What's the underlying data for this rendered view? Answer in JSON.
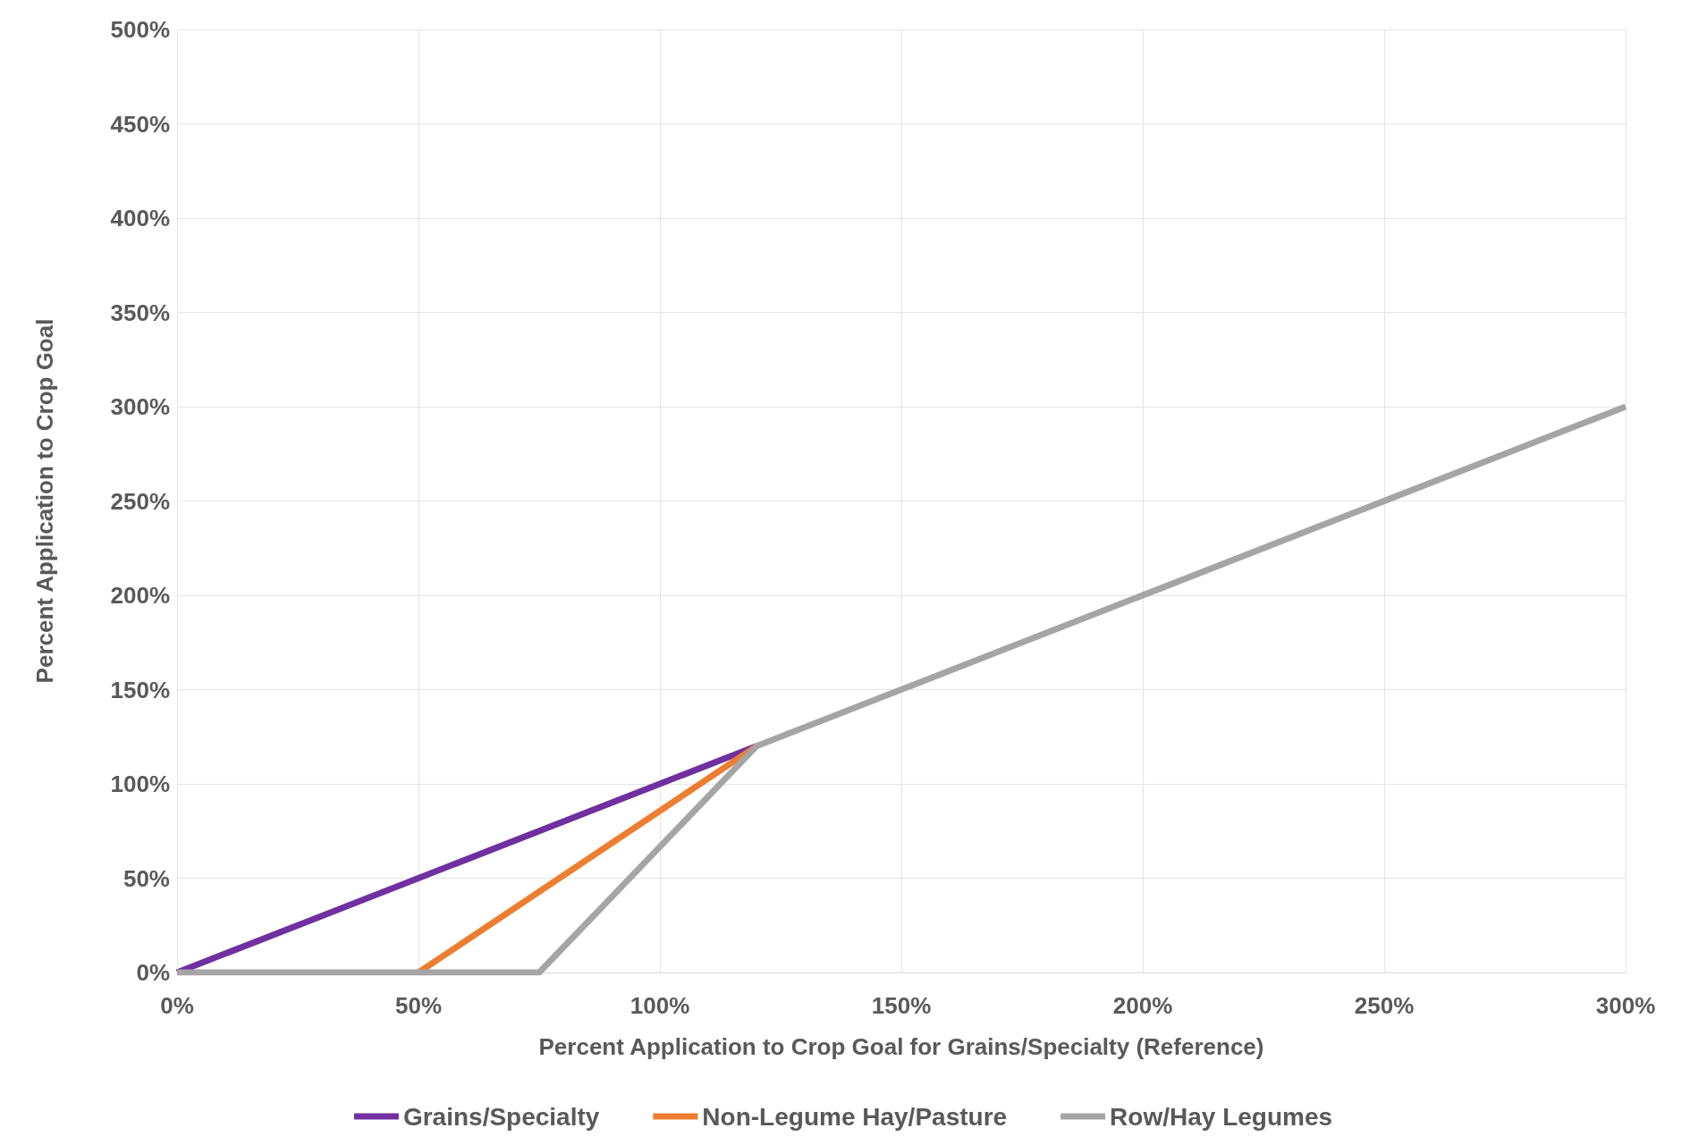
{
  "chart_data": {
    "type": "line",
    "xlabel": "Percent Application to Crop Goal for Grains/Specialty (Reference)",
    "ylabel": "Percent Application to Crop Goal",
    "xlim": [
      0,
      300
    ],
    "xticks": [
      {
        "value": 0,
        "label": "0%"
      },
      {
        "value": 50,
        "label": "50%"
      },
      {
        "value": 100,
        "label": "100%"
      },
      {
        "value": 150,
        "label": "150%"
      },
      {
        "value": 200,
        "label": "200%"
      },
      {
        "value": 250,
        "label": "250%"
      },
      {
        "value": 300,
        "label": "300%"
      }
    ],
    "ylim": [
      0,
      500
    ],
    "yticks": [
      {
        "value": 0,
        "label": "0%"
      },
      {
        "value": 50,
        "label": "50%"
      },
      {
        "value": 100,
        "label": "100%"
      },
      {
        "value": 150,
        "label": "150%"
      },
      {
        "value": 200,
        "label": "200%"
      },
      {
        "value": 250,
        "label": "250%"
      },
      {
        "value": 300,
        "label": "300%"
      },
      {
        "value": 350,
        "label": "350%"
      },
      {
        "value": 400,
        "label": "400%"
      },
      {
        "value": 450,
        "label": "450%"
      },
      {
        "value": 500,
        "label": "500%"
      }
    ],
    "grid": true,
    "legend": "bottom",
    "marker": "none",
    "line_style": "solid",
    "series": [
      {
        "name": "Grains/Specialty",
        "color": "#7030a0",
        "x": [
          0,
          120
        ],
        "values": [
          0,
          120
        ]
      },
      {
        "name": "Non-Legume Hay/Pasture",
        "color": "#ed7d31",
        "x": [
          50,
          120
        ],
        "values": [
          0,
          120
        ]
      },
      {
        "name": "Row/Hay Legumes",
        "color": "#a5a5a5",
        "x": [
          0,
          75,
          120,
          300
        ],
        "values": [
          0,
          0,
          120,
          300
        ]
      }
    ]
  }
}
